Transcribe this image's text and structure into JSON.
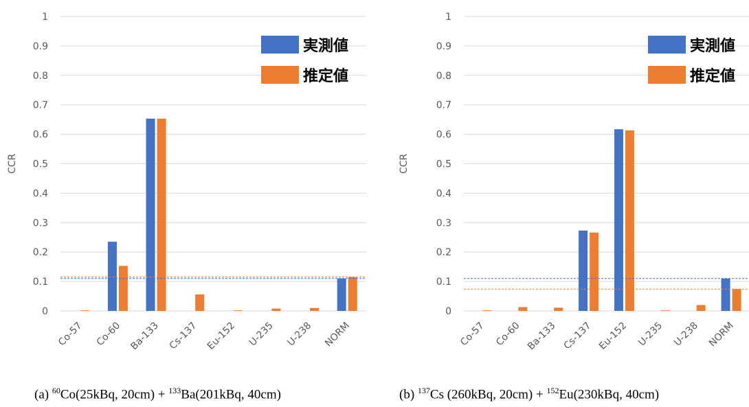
{
  "colors": {
    "measured": "#4472C4",
    "estimated": "#ED7D31",
    "grid": "#D9D9D9",
    "tick": "#595959"
  },
  "chart_data": [
    {
      "type": "bar",
      "ylabel": "CCR",
      "ylim": [
        0,
        1
      ],
      "yticks": [
        "0",
        "0.1",
        "0.2",
        "0.3",
        "0.4",
        "0.5",
        "0.6",
        "0.7",
        "0.8",
        "0.9",
        "1"
      ],
      "categories": [
        "Co-57",
        "Co-60",
        "Ba-133",
        "Cs-137",
        "Eu-152",
        "U-235",
        "U-238",
        "NORM"
      ],
      "series": [
        {
          "name": "実測値",
          "values": [
            0,
            0.235,
            0.653,
            0,
            0,
            0,
            0,
            0.11
          ]
        },
        {
          "name": "推定値",
          "values": [
            0.002,
            0.153,
            0.653,
            0.056,
            0.002,
            0.008,
            0.01,
            0.115
          ]
        }
      ],
      "reference_lines": [
        {
          "series": "実測値",
          "value": 0.11
        },
        {
          "series": "推定値",
          "value": 0.115
        }
      ],
      "legend_position": "top-right"
    },
    {
      "type": "bar",
      "ylabel": "CCR",
      "ylim": [
        0,
        1
      ],
      "yticks": [
        "0",
        "0.1",
        "0.2",
        "0.3",
        "0.4",
        "0.5",
        "0.6",
        "0.7",
        "0.8",
        "0.9",
        "1"
      ],
      "categories": [
        "Co-57",
        "Co-60",
        "Ba-133",
        "Cs-137",
        "Eu-152",
        "U-235",
        "U-238",
        "NORM"
      ],
      "series": [
        {
          "name": "実測値",
          "values": [
            0,
            0,
            0,
            0.273,
            0.617,
            0,
            0,
            0.11
          ]
        },
        {
          "name": "推定値",
          "values": [
            0.002,
            0.013,
            0.011,
            0.266,
            0.613,
            0.002,
            0.02,
            0.074
          ]
        }
      ],
      "reference_lines": [
        {
          "series": "実測値",
          "value": 0.11
        },
        {
          "series": "推定値",
          "value": 0.074
        }
      ],
      "legend_position": "top-right"
    }
  ],
  "captions": {
    "a": {
      "prefix": "(a) ",
      "sup1": "60",
      "mid1": "Co(25kBq, 20cm) + ",
      "sup2": "133",
      "mid2": "Ba(201kBq, 40cm)"
    },
    "b": {
      "prefix": "(b) ",
      "sup1": "137",
      "mid1": "Cs (260kBq, 20cm) + ",
      "sup2": "152",
      "mid2": "Eu(230kBq, 40cm)"
    }
  }
}
